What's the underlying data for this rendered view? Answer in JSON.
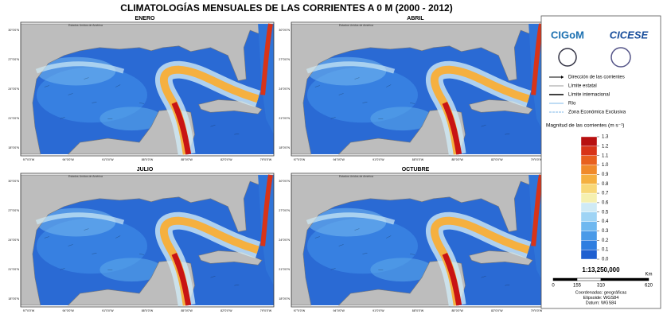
{
  "title": "CLIMATOLOGÍAS MENSUALES DE LAS CORRIENTES A 0 M (2000 - 2012)",
  "panels": [
    {
      "title": "ENERO"
    },
    {
      "title": "ABRIL"
    },
    {
      "title": "JULIO"
    },
    {
      "title": "OCTUBRE"
    }
  ],
  "map_labels": {
    "country": "Estados Unidos de América",
    "longitudes": [
      "97°0'0\"W",
      "94°0'0\"W",
      "91°0'0\"W",
      "88°0'0\"W",
      "85°0'0\"W",
      "82°0'0\"W",
      "79°0'0\"W"
    ],
    "latitudes": [
      "30°0'0\"N",
      "27°0'0\"N",
      "24°0'0\"N",
      "21°0'0\"N",
      "18°0'0\"N"
    ]
  },
  "legend": {
    "logos": [
      "CIGoM",
      "CICESE"
    ],
    "items": [
      "Dirección de las corrientes",
      "Límite estatal",
      "Límite internacional",
      "Río",
      "Zona Económica Exclusiva"
    ],
    "colorbar": {
      "title": "Magnitud de las corrientes (m s⁻¹)",
      "lim": [
        0,
        1.3
      ],
      "colors": [
        "#1f5fd0",
        "#2f7ee0",
        "#4a9ae8",
        "#6fb8f0",
        "#9fd4f5",
        "#cfeaf5",
        "#f5f0b0",
        "#f8d878",
        "#f5b040",
        "#f08a2a",
        "#e8601e",
        "#d83418",
        "#b81010"
      ],
      "ticks": [
        {
          "value": 0,
          "label": "0.0"
        },
        0.1,
        0.2,
        0.3,
        0.4,
        0.5,
        0.6,
        0.7,
        0.8,
        0.9,
        {
          "value": 1,
          "label": "1.0"
        },
        1.1,
        1.2,
        1.3
      ]
    },
    "scale": "1:13,250,000",
    "scalebar": {
      "unit": "Km",
      "ticks": [
        0,
        155,
        310,
        620
      ]
    },
    "notes": [
      "Coordenadas: geográficas",
      "Elipsoide: WGS84",
      "Datum: WGS84"
    ]
  }
}
